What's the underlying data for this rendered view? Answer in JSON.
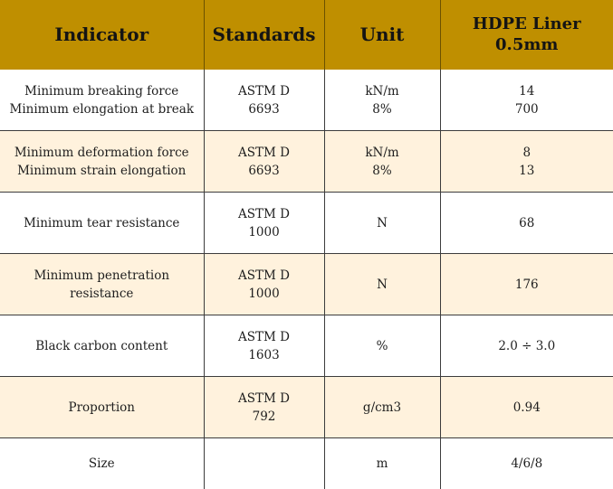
{
  "header": {
    "indicator": "Indicator",
    "standards": "Standards",
    "unit": "Unit",
    "product_line1": "HDPE Liner",
    "product_line2": "0.5mm"
  },
  "rows": [
    {
      "indicator": [
        "Minimum breaking force",
        "Minimum elongation at break"
      ],
      "standard": [
        "ASTM D",
        "6693"
      ],
      "unit": [
        "kN/m",
        "8%"
      ],
      "value": [
        "14",
        "700"
      ]
    },
    {
      "indicator": [
        "Minimum deformation force",
        "Minimum strain elongation"
      ],
      "standard": [
        "ASTM D",
        "6693"
      ],
      "unit": [
        "kN/m",
        "8%"
      ],
      "value": [
        "8",
        "13"
      ]
    },
    {
      "indicator": [
        "Minimum tear resistance"
      ],
      "standard": [
        "ASTM D",
        "1000"
      ],
      "unit": [
        "N"
      ],
      "value": [
        "68"
      ]
    },
    {
      "indicator": [
        "Minimum penetration",
        "resistance"
      ],
      "standard": [
        "ASTM D",
        "1000"
      ],
      "unit": [
        "N"
      ],
      "value": [
        "176"
      ]
    },
    {
      "indicator": [
        "Black carbon content"
      ],
      "standard": [
        "ASTM D",
        "1603"
      ],
      "unit": [
        "%"
      ],
      "value": [
        "2.0 ÷ 3.0"
      ]
    },
    {
      "indicator": [
        "Proportion"
      ],
      "standard": [
        "ASTM D",
        "792"
      ],
      "unit": [
        "g/cm3"
      ],
      "value": [
        "0.94"
      ]
    },
    {
      "indicator": [
        "Size"
      ],
      "standard": [],
      "unit": [
        "m"
      ],
      "value": [
        "4/6/8"
      ]
    }
  ],
  "colors": {
    "header_bg": "#bf8f00",
    "shaded_row_bg": "#fff2dd",
    "white_row_bg": "#ffffff"
  }
}
